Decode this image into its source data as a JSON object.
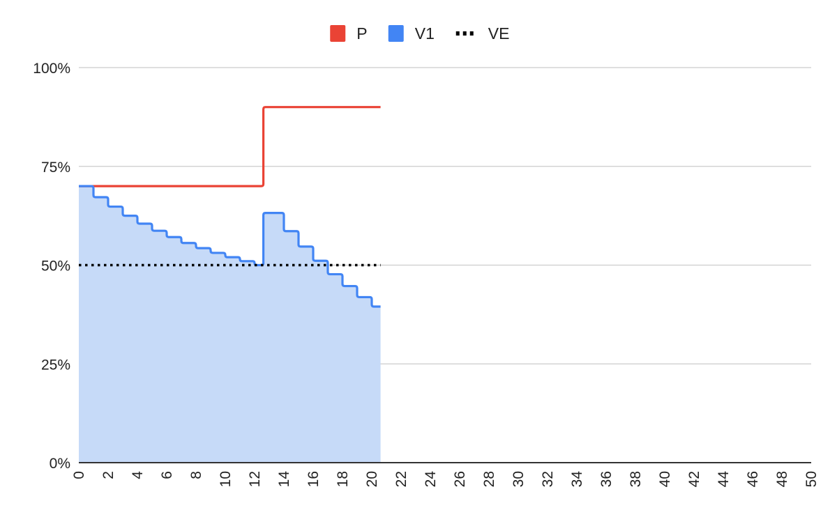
{
  "chart_data": {
    "type": "area",
    "title": "",
    "xlabel": "",
    "ylabel": "",
    "xlim": [
      0,
      50
    ],
    "ylim": [
      0,
      1
    ],
    "x_ticks": [
      "0",
      "2",
      "4",
      "6",
      "8",
      "10",
      "12",
      "14",
      "16",
      "18",
      "20",
      "22",
      "24",
      "26",
      "28",
      "30",
      "32",
      "34",
      "36",
      "38",
      "40",
      "42",
      "44",
      "46",
      "48",
      "50"
    ],
    "y_ticks": [
      {
        "value": 0,
        "label": "0%"
      },
      {
        "value": 0.25,
        "label": "25%"
      },
      {
        "value": 0.5,
        "label": "50%"
      },
      {
        "value": 0.75,
        "label": "75%"
      },
      {
        "value": 1,
        "label": "100%"
      }
    ],
    "grid": true,
    "legend_position": "top",
    "step_interpolation": "step-after",
    "series": [
      {
        "name": "P",
        "type": "line",
        "color": "#ea4335",
        "points": [
          [
            0,
            0.7
          ],
          [
            12.6,
            0.7
          ],
          [
            12.6,
            0.9
          ],
          [
            20.6,
            0.9
          ]
        ]
      },
      {
        "name": "V1",
        "type": "area",
        "color": "#4285f4",
        "fill": "#c6daf8",
        "points": [
          [
            0,
            0.7
          ],
          [
            1,
            0.672
          ],
          [
            2,
            0.648
          ],
          [
            3,
            0.625
          ],
          [
            4,
            0.605
          ],
          [
            5,
            0.587
          ],
          [
            6,
            0.571
          ],
          [
            7,
            0.556
          ],
          [
            8,
            0.543
          ],
          [
            9,
            0.531
          ],
          [
            10,
            0.52
          ],
          [
            11,
            0.51
          ],
          [
            12,
            0.5
          ],
          [
            12.6,
            0.632
          ],
          [
            14,
            0.586
          ],
          [
            15,
            0.547
          ],
          [
            16,
            0.511
          ],
          [
            17,
            0.477
          ],
          [
            18,
            0.447
          ],
          [
            19,
            0.419
          ],
          [
            20,
            0.395
          ],
          [
            20.6,
            0.395
          ]
        ]
      },
      {
        "name": "VE",
        "type": "line",
        "style": "dotted",
        "color": "#000000",
        "points": [
          [
            0,
            0.5
          ],
          [
            20.6,
            0.5
          ]
        ]
      }
    ]
  }
}
